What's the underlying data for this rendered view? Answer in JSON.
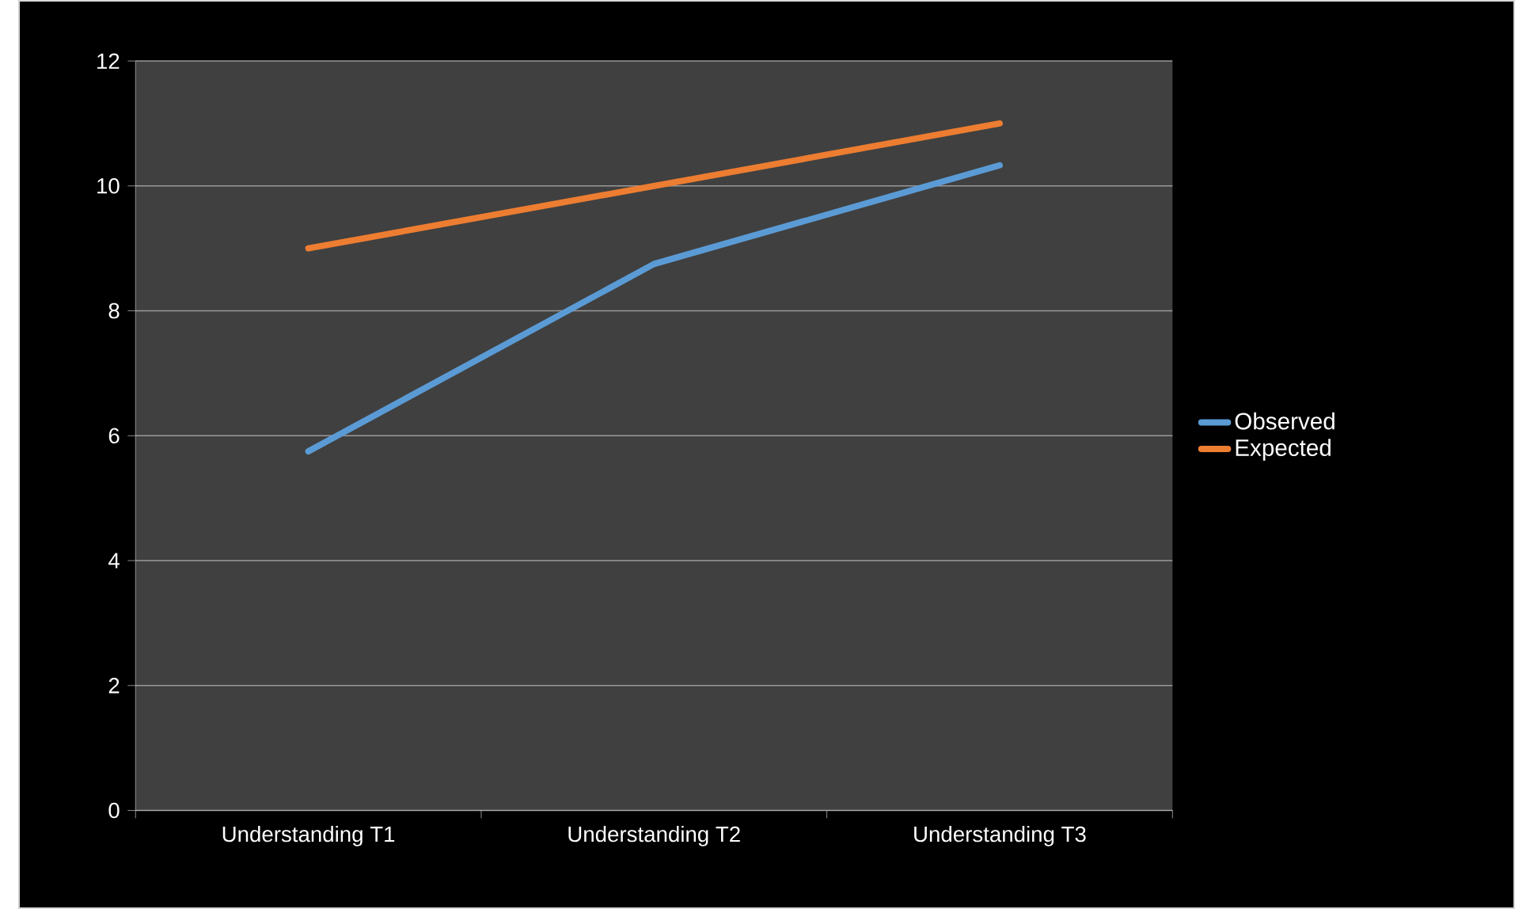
{
  "chart_data": {
    "type": "line",
    "categories": [
      "Understanding T1",
      "Understanding T2",
      "Understanding T3"
    ],
    "series": [
      {
        "name": "Observed",
        "color": "#5b9bd5",
        "values": [
          5.75,
          8.75,
          10.33
        ]
      },
      {
        "name": "Expected",
        "color": "#ed7d31",
        "values": [
          9,
          10,
          11
        ]
      }
    ],
    "ylim": [
      0,
      12
    ],
    "yticks": [
      0,
      2,
      4,
      6,
      8,
      10,
      12
    ],
    "grid": "y",
    "legend": "right"
  }
}
